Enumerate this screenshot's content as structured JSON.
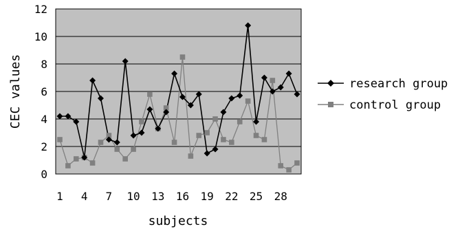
{
  "chart_data": {
    "type": "line",
    "title": "",
    "xlabel": "subjects",
    "ylabel": "CEC values",
    "x": [
      1,
      2,
      3,
      4,
      5,
      6,
      7,
      8,
      9,
      10,
      11,
      12,
      13,
      14,
      15,
      16,
      17,
      18,
      19,
      20,
      21,
      22,
      23,
      24,
      25,
      26,
      27,
      28,
      29,
      30
    ],
    "xticks": [
      "1",
      "4",
      "7",
      "10",
      "13",
      "16",
      "19",
      "22",
      "25",
      "28"
    ],
    "yticks": [
      "0",
      "2",
      "4",
      "6",
      "8",
      "10",
      "12"
    ],
    "ylim": [
      0,
      12
    ],
    "grid": "horizontal",
    "legend": "right",
    "plot_background": "#c0c0c0",
    "series": [
      {
        "name": "research group",
        "color": "#000000",
        "marker": "diamond",
        "values": [
          4.2,
          4.2,
          3.8,
          1.2,
          6.8,
          5.5,
          2.5,
          2.3,
          8.2,
          2.8,
          3.0,
          4.7,
          3.3,
          4.5,
          7.3,
          5.6,
          5.0,
          5.8,
          1.5,
          1.8,
          4.5,
          5.5,
          5.7,
          10.8,
          3.8,
          7.0,
          6.0,
          6.3,
          7.3,
          5.8
        ]
      },
      {
        "name": "control group",
        "color": "#808080",
        "marker": "square",
        "values": [
          2.5,
          0.6,
          1.1,
          1.2,
          0.8,
          2.3,
          2.8,
          1.8,
          1.1,
          1.8,
          3.8,
          5.8,
          3.3,
          4.8,
          2.3,
          8.5,
          1.3,
          2.8,
          3.0,
          4.0,
          2.5,
          2.3,
          3.8,
          5.3,
          2.8,
          2.5,
          6.8,
          0.6,
          0.3,
          0.8
        ]
      }
    ]
  }
}
